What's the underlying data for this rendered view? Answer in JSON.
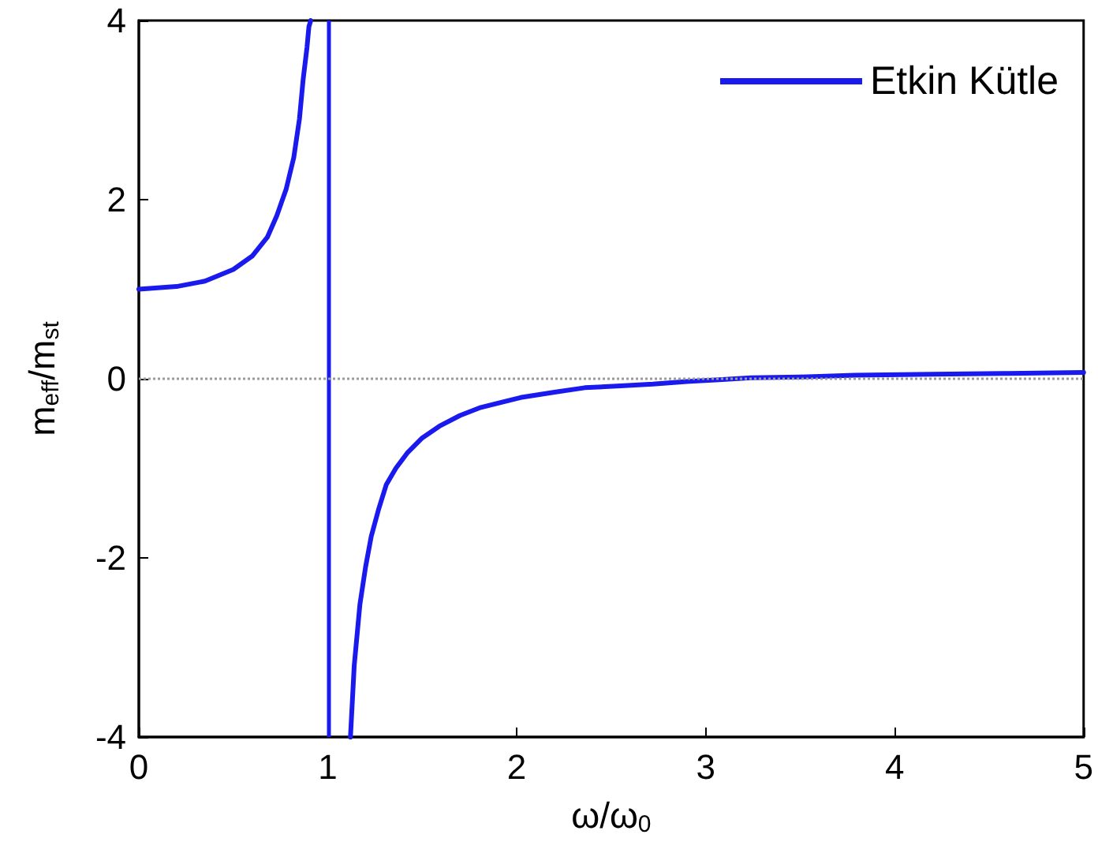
{
  "chart_data": {
    "type": "line",
    "xlabel": "ω/ω$_{0}$",
    "ylabel": "m$_{eff}$/m$_{st}$",
    "xlim": [
      0,
      5
    ],
    "xticks": [
      0,
      1,
      2,
      3,
      4,
      5
    ],
    "ylim": [
      -4,
      4
    ],
    "yticks": [
      -4,
      -2,
      0,
      2,
      4
    ],
    "grid": false,
    "legend": "top right",
    "marker": "none",
    "line_style": "solid",
    "series": [
      {
        "name": "Etkin Kütle",
        "color": "#1a1aee",
        "x": [
          0,
          0.2,
          0.35,
          0.5,
          0.6,
          0.68,
          0.73,
          0.78,
          0.82,
          0.85,
          0.87,
          0.89,
          0.9,
          0.91,
          1,
          1.12,
          1.14,
          1.17,
          1.2,
          1.23,
          1.27,
          1.31,
          1.36,
          1.42,
          1.5,
          1.59,
          1.7,
          1.81,
          2.02,
          2.2,
          2.36,
          2.55,
          2.72,
          2.9,
          3.07,
          3.24,
          3.5,
          3.79,
          4.2,
          4.6,
          5
        ],
        "values": [
          1,
          1.03,
          1.09,
          1.22,
          1.37,
          1.58,
          1.82,
          2.12,
          2.47,
          2.9,
          3.35,
          3.7,
          3.93,
          4,
          null,
          -4,
          -3.2,
          -2.52,
          -2.1,
          -1.76,
          -1.45,
          -1.18,
          -1.0,
          -0.83,
          -0.66,
          -0.53,
          -0.41,
          -0.32,
          -0.21,
          -0.15,
          -0.1,
          -0.08,
          -0.06,
          -0.03,
          -0.01,
          0.01,
          0.02,
          0.04,
          0.05,
          0.06,
          0.07
        ]
      }
    ],
    "ref_lines": [
      {
        "axis": "x",
        "value": 1,
        "color": "#1a1aee",
        "line_style": "solid"
      },
      {
        "axis": "y",
        "value": 0,
        "color": "#9a9a9a",
        "line_style": "dotted"
      }
    ]
  }
}
